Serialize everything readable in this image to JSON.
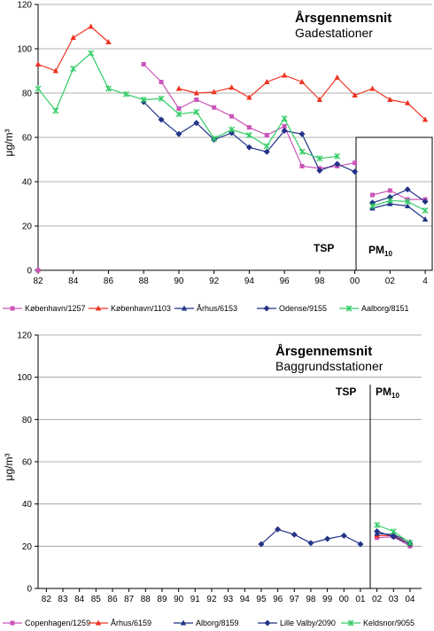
{
  "chart_data": [
    {
      "type": "line",
      "title": "Årsgennemsnit",
      "subtitle": "Gadestationer",
      "ylabel": "μg/m³",
      "ylim": [
        0,
        120
      ],
      "yticks": [
        0,
        20,
        40,
        60,
        80,
        100,
        120
      ],
      "xlim": [
        1982,
        2004.4
      ],
      "xticks": [
        {
          "v": 1982,
          "label": "82"
        },
        {
          "v": 1984,
          "label": "84"
        },
        {
          "v": 1986,
          "label": "86"
        },
        {
          "v": 1988,
          "label": "88"
        },
        {
          "v": 1990,
          "label": "90"
        },
        {
          "v": 1992,
          "label": "92"
        },
        {
          "v": 1994,
          "label": "94"
        },
        {
          "v": 1996,
          "label": "96"
        },
        {
          "v": 1998,
          "label": "98"
        },
        {
          "v": 2000,
          "label": "00"
        },
        {
          "v": 2002,
          "label": "02"
        },
        {
          "v": 2004,
          "label": "4"
        }
      ],
      "grid": true,
      "annotation_tsp": "TSP",
      "annotation_pm": "PM",
      "annotation_pm_sub": "10",
      "series": [
        {
          "name": "København/1257",
          "color": "#cc55bb",
          "marker": "square",
          "segments": [
            [
              [
                1988,
                93
              ],
              [
                1989,
                85
              ],
              [
                1990,
                73
              ],
              [
                1991,
                77
              ],
              [
                1992,
                73.5
              ],
              [
                1993,
                69.5
              ],
              [
                1994,
                64.5
              ],
              [
                1995,
                61
              ],
              [
                1996,
                65
              ],
              [
                1997,
                47
              ],
              [
                1998,
                46
              ],
              [
                1999,
                47
              ],
              [
                2000,
                48.5
              ]
            ],
            [
              [
                2001,
                34
              ],
              [
                2002,
                36
              ],
              [
                2003,
                32
              ],
              [
                2004,
                32
              ]
            ]
          ]
        },
        {
          "name": "København/1103",
          "color": "#ee3322",
          "marker": "triangle",
          "segments": [
            [
              [
                1982,
                93
              ],
              [
                1983,
                90
              ],
              [
                1984,
                105
              ],
              [
                1985,
                110
              ],
              [
                1986,
                103
              ]
            ],
            [
              [
                1990,
                82
              ],
              [
                1991,
                80
              ],
              [
                1992,
                80.5
              ],
              [
                1993,
                82.5
              ],
              [
                1994,
                78
              ],
              [
                1995,
                85
              ],
              [
                1996,
                88
              ],
              [
                1997,
                85
              ],
              [
                1998,
                77
              ],
              [
                1999,
                87
              ],
              [
                2000,
                79
              ],
              [
                2001,
                82
              ],
              [
                2002,
                77
              ],
              [
                2003,
                75.5
              ],
              [
                2004,
                68
              ]
            ]
          ]
        },
        {
          "name": "Århus/6153",
          "color": "#223388",
          "marker": "triangle",
          "segments": [
            [
              [
                2001,
                28
              ],
              [
                2002,
                30
              ],
              [
                2003,
                29
              ],
              [
                2004,
                23
              ]
            ]
          ]
        },
        {
          "name": "Odense/9155",
          "color": "#223388",
          "marker": "diamond",
          "segments": [
            [
              [
                1988,
                76
              ],
              [
                1989,
                68
              ],
              [
                1990,
                61.5
              ],
              [
                1991,
                66.5
              ],
              [
                1992,
                59
              ],
              [
                1993,
                62
              ],
              [
                1994,
                55.5
              ],
              [
                1995,
                53.5
              ],
              [
                1996,
                63
              ],
              [
                1997,
                61.5
              ],
              [
                1998,
                45
              ],
              [
                1999,
                48
              ],
              [
                2000,
                44.5
              ]
            ],
            [
              [
                2001,
                30.5
              ],
              [
                2002,
                33
              ],
              [
                2003,
                36.5
              ],
              [
                2004,
                31
              ]
            ]
          ]
        },
        {
          "name": "Aalborg/8151",
          "color": "#33cc66",
          "marker": "x",
          "segments": [
            [
              [
                1982,
                82
              ],
              [
                1983,
                72
              ],
              [
                1984,
                91
              ],
              [
                1985,
                98
              ],
              [
                1986,
                82
              ],
              [
                1987,
                79.5
              ],
              [
                1988,
                77
              ],
              [
                1989,
                77.5
              ],
              [
                1990,
                70.5
              ],
              [
                1991,
                71.5
              ],
              [
                1992,
                59.5
              ],
              [
                1993,
                63.5
              ],
              [
                1994,
                61
              ],
              [
                1995,
                56
              ],
              [
                1996,
                68.5
              ],
              [
                1997,
                53.5
              ],
              [
                1998,
                50.5
              ],
              [
                1999,
                51.5
              ]
            ],
            [
              [
                2001,
                29
              ],
              [
                2002,
                31.5
              ],
              [
                2003,
                31
              ],
              [
                2004,
                27
              ]
            ]
          ]
        }
      ],
      "extra_points": [
        {
          "x": 1982,
          "y": 0,
          "color": "#cc55bb",
          "marker": "square"
        }
      ]
    },
    {
      "type": "line",
      "title": "Årsgennemsnit",
      "subtitle": "Baggrundsstationer",
      "ylabel": "μg/m³",
      "ylim": [
        0,
        120
      ],
      "yticks": [
        0,
        20,
        40,
        60,
        80,
        100,
        120
      ],
      "xlim": [
        1981.5,
        2004.7
      ],
      "xticks": [
        {
          "v": 1982,
          "label": "82"
        },
        {
          "v": 1983,
          "label": "83"
        },
        {
          "v": 1984,
          "label": "84"
        },
        {
          "v": 1985,
          "label": "85"
        },
        {
          "v": 1986,
          "label": "86"
        },
        {
          "v": 1987,
          "label": "87"
        },
        {
          "v": 1988,
          "label": "88"
        },
        {
          "v": 1989,
          "label": "89"
        },
        {
          "v": 1990,
          "label": "90"
        },
        {
          "v": 1991,
          "label": "91"
        },
        {
          "v": 1992,
          "label": "92"
        },
        {
          "v": 1993,
          "label": "93"
        },
        {
          "v": 1994,
          "label": "94"
        },
        {
          "v": 1995,
          "label": "95"
        },
        {
          "v": 1996,
          "label": "96"
        },
        {
          "v": 1997,
          "label": "97"
        },
        {
          "v": 1998,
          "label": "98"
        },
        {
          "v": 1999,
          "label": "99"
        },
        {
          "v": 2000,
          "label": "00"
        },
        {
          "v": 2001,
          "label": "01"
        },
        {
          "v": 2002,
          "label": "02"
        },
        {
          "v": 2003,
          "label": "03"
        },
        {
          "v": 2004,
          "label": "04"
        }
      ],
      "grid": true,
      "annotation_tsp": "TSP",
      "annotation_pm": "PM",
      "annotation_pm_sub": "10",
      "series": [
        {
          "name": "Copenhagen/1259",
          "color": "#cc55bb",
          "marker": "square",
          "segments": [
            [
              [
                2002,
                24
              ],
              [
                2003,
                24.5
              ],
              [
                2004,
                20
              ]
            ]
          ]
        },
        {
          "name": "Århus/6159",
          "color": "#ee3322",
          "marker": "triangle",
          "segments": [
            [
              [
                2002,
                25
              ],
              [
                2003,
                25
              ],
              [
                2004,
                21
              ]
            ]
          ]
        },
        {
          "name": "Alborg/8159",
          "color": "#223388",
          "marker": "triangle",
          "segments": [
            [
              [
                2002,
                26
              ],
              [
                2003,
                25.5
              ],
              [
                2004,
                22
              ]
            ]
          ]
        },
        {
          "name": "Lille Valby/2090",
          "color": "#223388",
          "marker": "diamond",
          "segments": [
            [
              [
                1995,
                21
              ],
              [
                1996,
                28
              ],
              [
                1997,
                25.5
              ],
              [
                1998,
                21.5
              ],
              [
                1999,
                23.5
              ],
              [
                2000,
                25
              ],
              [
                2001,
                21
              ]
            ],
            [
              [
                2002,
                27
              ],
              [
                2003,
                24.5
              ],
              [
                2004,
                21
              ]
            ]
          ]
        },
        {
          "name": "Keldsnor/9055",
          "color": "#33cc66",
          "marker": "x",
          "segments": [
            [
              [
                2002,
                30
              ],
              [
                2003,
                27
              ],
              [
                2004,
                21.5
              ]
            ]
          ]
        }
      ]
    }
  ]
}
